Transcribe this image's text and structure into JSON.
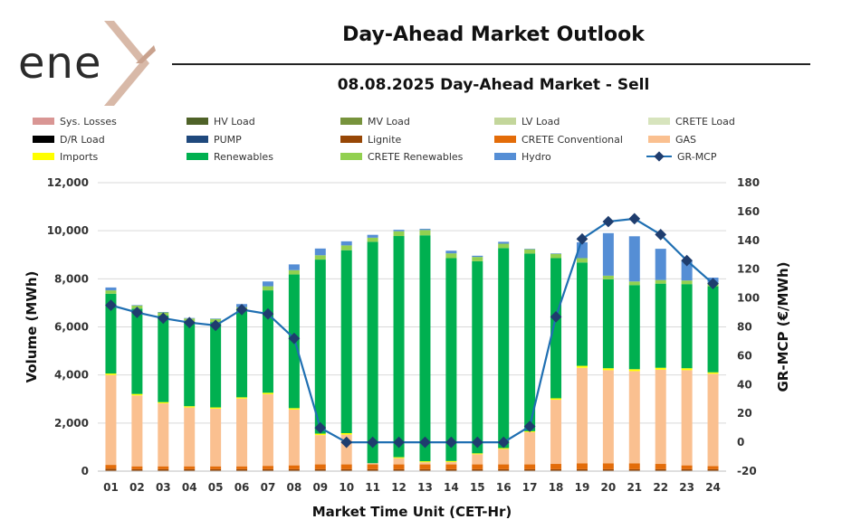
{
  "header": {
    "logo_text": "ene",
    "title": "Day-Ahead Market Outlook",
    "subtitle": "08.08.2025  Day-Ahead Market - Sell"
  },
  "chart_data": {
    "type": "bar",
    "stacked": true,
    "xlabel": "Market Time Unit (CET-Hr)",
    "ylabel": "Volume (MWh)",
    "y2label": "GR-MCP (€/MWh)",
    "ylim": [
      0,
      12000
    ],
    "y2lim": [
      -20,
      180
    ],
    "yticks": [
      "0",
      "2,000",
      "4,000",
      "6,000",
      "8,000",
      "10,000",
      "12,000"
    ],
    "y2ticks": [
      "-20",
      "0",
      "20",
      "40",
      "60",
      "80",
      "100",
      "120",
      "140",
      "160",
      "180"
    ],
    "categories": [
      "01",
      "02",
      "03",
      "04",
      "05",
      "06",
      "07",
      "08",
      "09",
      "10",
      "11",
      "12",
      "13",
      "14",
      "15",
      "16",
      "17",
      "18",
      "19",
      "20",
      "21",
      "22",
      "23",
      "24"
    ],
    "legend": [
      {
        "name": "Sys. Losses",
        "color": "#d99694",
        "kind": "bar"
      },
      {
        "name": "HV Load",
        "color": "#4f6228",
        "kind": "bar"
      },
      {
        "name": "MV Load",
        "color": "#77933c",
        "kind": "bar"
      },
      {
        "name": "LV Load",
        "color": "#c3d69b",
        "kind": "bar"
      },
      {
        "name": "CRETE Load",
        "color": "#d7e4bd",
        "kind": "bar"
      },
      {
        "name": "D/R Load",
        "color": "#000000",
        "kind": "bar"
      },
      {
        "name": "PUMP",
        "color": "#1f497d",
        "kind": "bar"
      },
      {
        "name": "Lignite",
        "color": "#974706",
        "kind": "bar"
      },
      {
        "name": "CRETE Conventional",
        "color": "#e36c09",
        "kind": "bar"
      },
      {
        "name": "GAS",
        "color": "#fac090",
        "kind": "bar"
      },
      {
        "name": "Imports",
        "color": "#ffff00",
        "kind": "bar"
      },
      {
        "name": "Renewables",
        "color": "#00b050",
        "kind": "bar"
      },
      {
        "name": "CRETE Renewables",
        "color": "#92d050",
        "kind": "bar"
      },
      {
        "name": "Hydro",
        "color": "#558ed5",
        "kind": "bar"
      },
      {
        "name": "GR-MCP",
        "color": "#1f6fb2",
        "kind": "line"
      }
    ],
    "series": [
      {
        "name": "Lignite",
        "color": "#974706",
        "values": [
          100,
          80,
          80,
          80,
          80,
          80,
          80,
          80,
          80,
          80,
          80,
          80,
          80,
          80,
          80,
          80,
          80,
          80,
          80,
          80,
          80,
          80,
          80,
          80
        ]
      },
      {
        "name": "CRETE Conventional",
        "color": "#e36c09",
        "values": [
          160,
          120,
          120,
          120,
          120,
          120,
          140,
          160,
          200,
          200,
          200,
          200,
          200,
          200,
          200,
          200,
          200,
          220,
          240,
          240,
          240,
          220,
          160,
          130
        ]
      },
      {
        "name": "GAS",
        "color": "#fac090",
        "values": [
          3740,
          2950,
          2620,
          2450,
          2400,
          2820,
          2980,
          2320,
          1220,
          1240,
          50,
          260,
          90,
          100,
          420,
          640,
          1340,
          2670,
          3980,
          3880,
          3840,
          3920,
          3960,
          3840
        ]
      },
      {
        "name": "Imports",
        "color": "#ffff00",
        "values": [
          60,
          60,
          50,
          50,
          50,
          50,
          60,
          60,
          60,
          60,
          0,
          40,
          40,
          40,
          40,
          40,
          40,
          60,
          80,
          80,
          80,
          80,
          80,
          60
        ]
      },
      {
        "name": "Renewables",
        "color": "#00b050",
        "values": [
          3320,
          3550,
          3600,
          3520,
          3550,
          3610,
          4260,
          5560,
          7240,
          7610,
          9210,
          9200,
          9400,
          8440,
          7990,
          8320,
          7390,
          5830,
          4300,
          3700,
          3500,
          3500,
          3500,
          3580
        ]
      },
      {
        "name": "CRETE Renewables",
        "color": "#92d050",
        "values": [
          140,
          130,
          130,
          130,
          130,
          140,
          170,
          180,
          180,
          200,
          170,
          200,
          220,
          200,
          180,
          180,
          180,
          180,
          180,
          150,
          150,
          150,
          150,
          150
        ]
      },
      {
        "name": "Hydro",
        "color": "#558ed5",
        "values": [
          120,
          20,
          20,
          20,
          20,
          130,
          200,
          240,
          280,
          170,
          120,
          60,
          50,
          110,
          50,
          80,
          20,
          20,
          660,
          1770,
          1880,
          1300,
          820,
          210
        ]
      }
    ],
    "line_series": {
      "name": "GR-MCP",
      "color": "#1f6fb2",
      "axis": "y2",
      "values": [
        95,
        90,
        86,
        83,
        81,
        92,
        89,
        72,
        10,
        0,
        0,
        0,
        0,
        0,
        0,
        0,
        11,
        87,
        141,
        153,
        155,
        144,
        126,
        110
      ]
    }
  }
}
